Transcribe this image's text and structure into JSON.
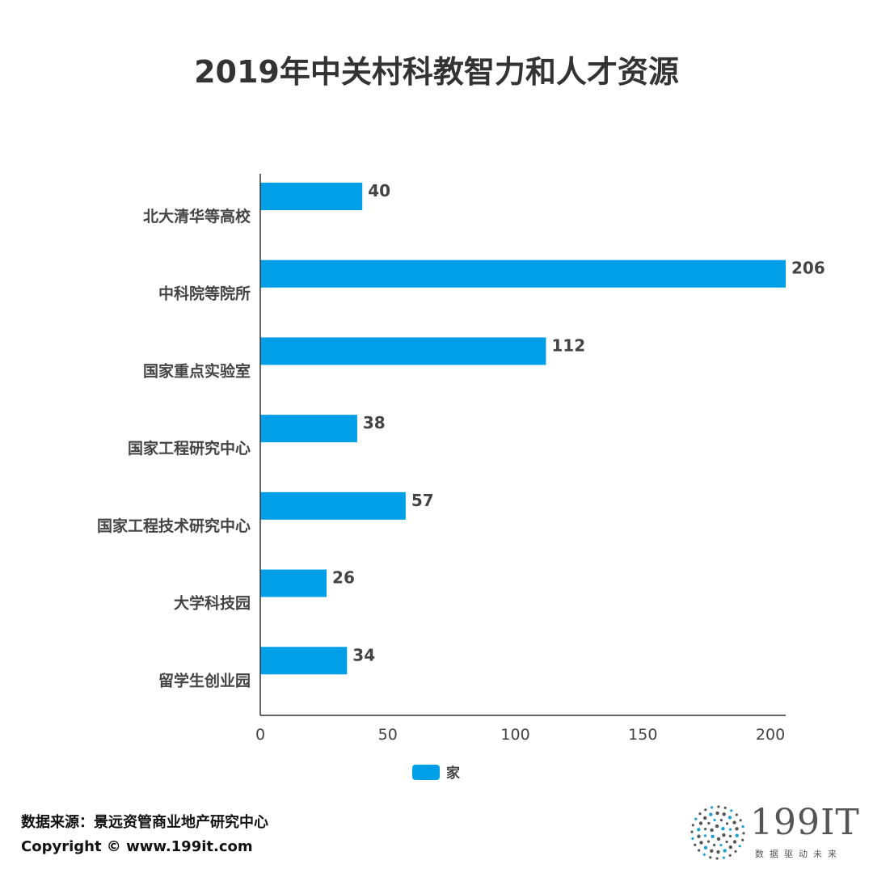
{
  "chart_data": {
    "type": "bar",
    "orientation": "horizontal",
    "title": "2019年中关村科教智力和人才资源",
    "categories": [
      "北大清华等高校",
      "中科院等院所",
      "国家重点实验室",
      "国家工程研究中心",
      "国家工程技术研究中心",
      "大学科技园",
      "留学生创业园"
    ],
    "series": [
      {
        "name": "家",
        "values": [
          40,
          206,
          112,
          38,
          57,
          26,
          34
        ],
        "color": "#009FE8"
      }
    ],
    "x_ticks": [
      "0",
      "50",
      "100",
      "150",
      "200"
    ],
    "xlim": [
      0,
      206
    ],
    "grid": false,
    "legend_position": "bottom-center"
  },
  "footer": {
    "source": "数据来源：景远资管商业地产研究中心",
    "copyright": "Copyright ©  www.199it.com"
  },
  "logo": {
    "text": "199IT",
    "tagline": "数据驱动未来",
    "accent_color": "#1E9FD8",
    "text_color": "#555555"
  }
}
